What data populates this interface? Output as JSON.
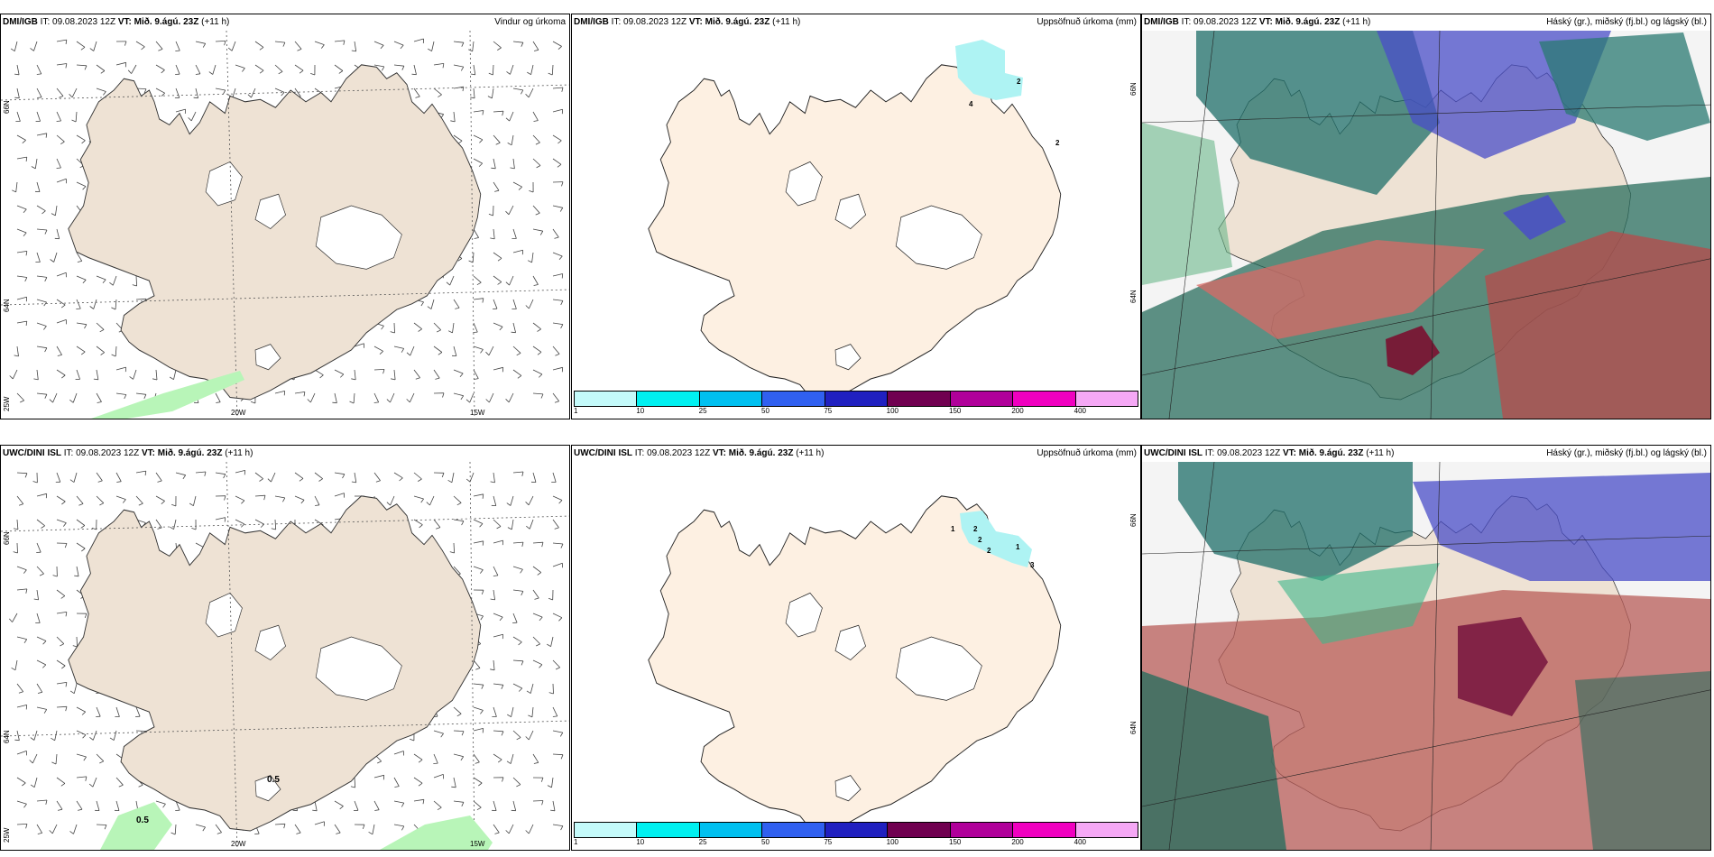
{
  "rows": [
    {
      "model": "DMI/IGB",
      "it_label": "IT:",
      "it_value": "09.08.2023 12Z",
      "vt_label": "VT:",
      "vt_value": "Mið. 9.ágú. 23Z",
      "lead": "(+11 h)",
      "wind_title": "Vindur og úrkoma",
      "precip_title": "Uppsöfnuð úrkoma (mm)",
      "cloud_title": "Háský (gr.), miðský (fj.bl.) og lágský (bl.)",
      "precip_labels": [
        "4",
        "2",
        "2"
      ],
      "wind_labels": []
    },
    {
      "model": "UWC/DINI ISL",
      "it_label": "IT:",
      "it_value": "09.08.2023 12Z",
      "vt_label": "VT:",
      "vt_value": "Mið. 9.ágú. 23Z",
      "lead": "(+11 h)",
      "wind_title": "",
      "precip_title": "Uppsöfnuð úrkoma (mm)",
      "cloud_title": "Háský (gr.), miðský (fj.bl.) og lágský (bl.)",
      "precip_labels": [
        "1",
        "2",
        "2",
        "2",
        "1",
        "3"
      ],
      "wind_labels": [
        "0.5",
        "0.5"
      ]
    }
  ],
  "axes": {
    "lat_top": "66N",
    "lat_mid": "64N",
    "lat_bottom": "25W",
    "lon_a": "20W",
    "lon_b": "15W",
    "precip_lat_top": "66N",
    "precip_lat_mid": "64N"
  },
  "colorbar": {
    "ticks": [
      "1",
      "10",
      "25",
      "50",
      "75",
      "100",
      "150",
      "200",
      "400"
    ],
    "colors": [
      "#c4fafa",
      "#00f0f0",
      "#00c0f0",
      "#3060f0",
      "#2020c0",
      "#700050",
      "#b0009a",
      "#f000c0",
      "#f5a8f5"
    ]
  },
  "colors": {
    "land_wind": "#eee2d4",
    "land_precip": "#fdf0e2",
    "precip_light": "#aef3f3",
    "wind_green": "#b8f5b8"
  }
}
